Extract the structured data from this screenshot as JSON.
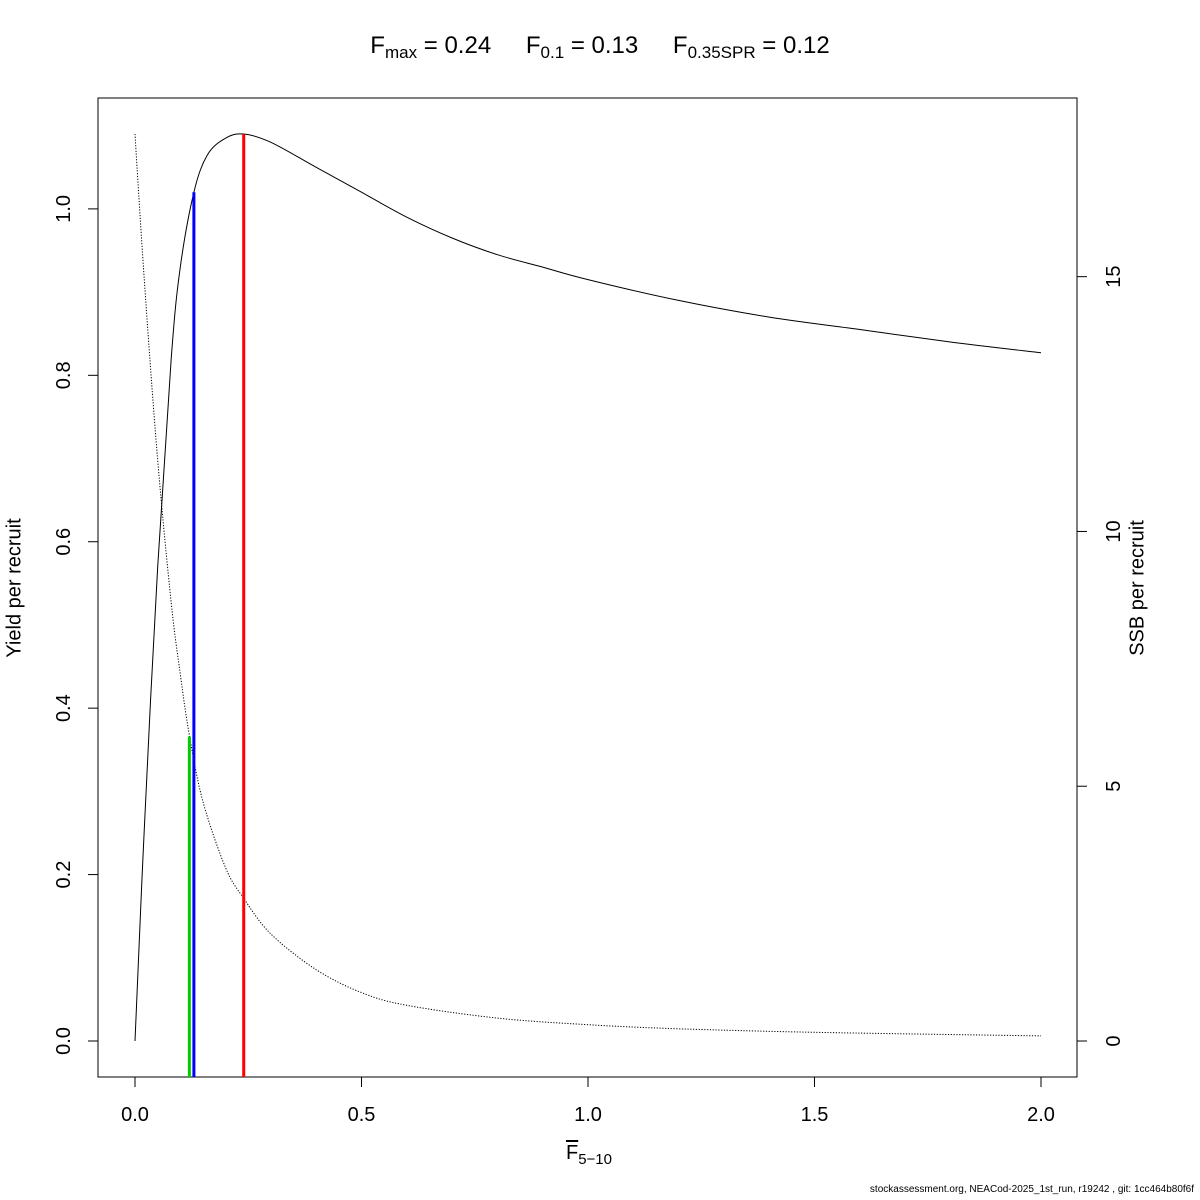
{
  "title": {
    "fmax_label": "F",
    "fmax_sub": "max",
    "fmax_value": "= 0.24",
    "f01_label": "F",
    "f01_sub": "0.1",
    "f01_value": "= 0.13",
    "fspr_label": "F",
    "fspr_sub": "0.35SPR",
    "fspr_value": "= 0.12"
  },
  "footer": "stockassessment.org, NEACod-2025_1st_run, r19242 , git: 1cc464b80f6f",
  "chart_data": {
    "type": "line",
    "xlabel": {
      "main": "F",
      "sub": "5−10"
    },
    "ylabel_left": "Yield per recruit",
    "ylabel_right": "SSB per recruit",
    "xlim": [
      0,
      2
    ],
    "ylim_left": [
      0,
      1.09
    ],
    "ylim_right": [
      0,
      17.8
    ],
    "x_ticks": [
      "0.0",
      "0.5",
      "1.0",
      "1.5",
      "2.0"
    ],
    "y_left_ticks": [
      "0.0",
      "0.2",
      "0.4",
      "0.6",
      "0.8",
      "1.0"
    ],
    "y_right_ticks": [
      "0",
      "5",
      "10",
      "15"
    ],
    "series": [
      {
        "axis": "left",
        "style": "solid",
        "color": "#000000",
        "x": [
          0,
          0.02,
          0.05,
          0.08,
          0.1,
          0.13,
          0.16,
          0.2,
          0.24,
          0.3,
          0.4,
          0.5,
          0.6,
          0.7,
          0.8,
          0.9,
          1.0,
          1.2,
          1.4,
          1.6,
          1.8,
          2.0
        ],
        "y": [
          0,
          0.25,
          0.57,
          0.82,
          0.93,
          1.02,
          1.065,
          1.085,
          1.09,
          1.08,
          1.05,
          1.02,
          0.99,
          0.965,
          0.945,
          0.93,
          0.915,
          0.89,
          0.87,
          0.855,
          0.84,
          0.827
        ]
      },
      {
        "axis": "right",
        "style": "dotted",
        "color": "#000000",
        "x": [
          0,
          0.02,
          0.05,
          0.08,
          0.1,
          0.12,
          0.15,
          0.2,
          0.24,
          0.3,
          0.4,
          0.5,
          0.6,
          0.8,
          1.0,
          1.2,
          1.5,
          2.0
        ],
        "y": [
          17.8,
          15.0,
          11.4,
          8.6,
          7.2,
          6.0,
          4.7,
          3.4,
          2.8,
          2.1,
          1.4,
          0.95,
          0.7,
          0.45,
          0.32,
          0.24,
          0.17,
          0.1
        ]
      }
    ],
    "reference_lines": [
      {
        "name": "F0.35SPR",
        "x": 0.12,
        "y_left": 0.366,
        "color": "#00cc00"
      },
      {
        "name": "F0.1",
        "x": 0.13,
        "y_left": 1.02,
        "color": "#0000ff"
      },
      {
        "name": "Fmax",
        "x": 0.24,
        "y_left": 1.09,
        "color": "#ff0000"
      }
    ]
  }
}
